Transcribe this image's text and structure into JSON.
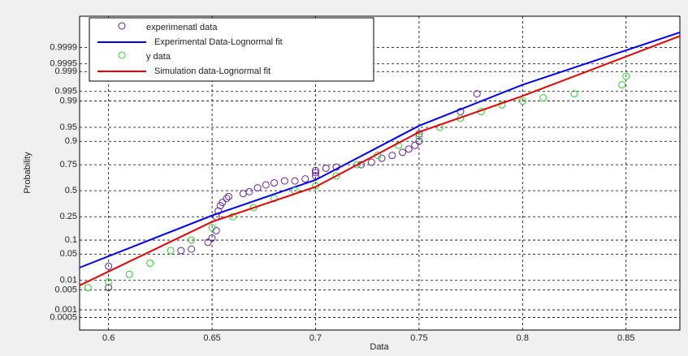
{
  "chart_data": {
    "type": "scatter",
    "yscale": "normal-probability",
    "grid": true,
    "legend": "upper left",
    "xlabel": "Data",
    "ylabel": "Probability",
    "xlim": [
      0.586,
      0.876
    ],
    "xticks": [
      0.6,
      0.65,
      0.7,
      0.75,
      0.8,
      0.85
    ],
    "ylim": [
      0.00015,
      0.999997
    ],
    "yticks": [
      0.0005,
      0.001,
      0.005,
      0.01,
      0.05,
      0.1,
      0.25,
      0.5,
      0.75,
      0.9,
      0.95,
      0.99,
      0.995,
      0.999,
      0.9995,
      0.9999
    ],
    "series": [
      {
        "name": "experimenatl data",
        "color": "#6a1fa6",
        "marker": "circle",
        "x": [
          0.6,
          0.6,
          0.635,
          0.64,
          0.648,
          0.65,
          0.652,
          0.652,
          0.653,
          0.654,
          0.655,
          0.657,
          0.658,
          0.665,
          0.668,
          0.672,
          0.676,
          0.68,
          0.685,
          0.69,
          0.695,
          0.7,
          0.7,
          0.7,
          0.705,
          0.71,
          0.722,
          0.727,
          0.732,
          0.737,
          0.742,
          0.745,
          0.748,
          0.75,
          0.75,
          0.77,
          0.778
        ],
        "values": [
          0.006,
          0.025,
          0.06,
          0.065,
          0.09,
          0.11,
          0.15,
          0.25,
          0.3,
          0.35,
          0.38,
          0.42,
          0.44,
          0.47,
          0.49,
          0.53,
          0.56,
          0.58,
          0.6,
          0.6,
          0.62,
          0.65,
          0.68,
          0.7,
          0.72,
          0.73,
          0.75,
          0.77,
          0.8,
          0.82,
          0.84,
          0.86,
          0.88,
          0.9,
          0.93,
          0.98,
          0.994
        ]
      },
      {
        "name": "Experimental Data-Lognormal  fit",
        "color": "#0000ff",
        "marker": "line",
        "x": [
          0.586,
          0.65,
          0.7,
          0.75,
          0.8,
          0.876
        ],
        "values": [
          0.023,
          0.26,
          0.61,
          0.954,
          0.997,
          0.99998
        ]
      },
      {
        "name": "y data",
        "color": "#22dd22",
        "marker": "circle",
        "x": [
          0.59,
          0.6,
          0.61,
          0.62,
          0.63,
          0.64,
          0.65,
          0.66,
          0.67,
          0.68,
          0.69,
          0.7,
          0.71,
          0.72,
          0.73,
          0.74,
          0.75,
          0.76,
          0.77,
          0.78,
          0.79,
          0.8,
          0.81,
          0.825,
          0.848,
          0.85
        ],
        "values": [
          0.006,
          0.009,
          0.015,
          0.03,
          0.06,
          0.1,
          0.17,
          0.25,
          0.33,
          0.42,
          0.5,
          0.55,
          0.65,
          0.75,
          0.82,
          0.88,
          0.92,
          0.95,
          0.97,
          0.98,
          0.987,
          0.99,
          0.992,
          0.994,
          0.997,
          0.9985
        ]
      },
      {
        "name": "Simulation data-Lognormal fit",
        "color": "#ee0000",
        "marker": "line",
        "x": [
          0.586,
          0.65,
          0.7,
          0.75,
          0.8,
          0.876
        ],
        "values": [
          0.007,
          0.21,
          0.54,
          0.936,
          0.993,
          0.99997
        ]
      }
    ]
  }
}
